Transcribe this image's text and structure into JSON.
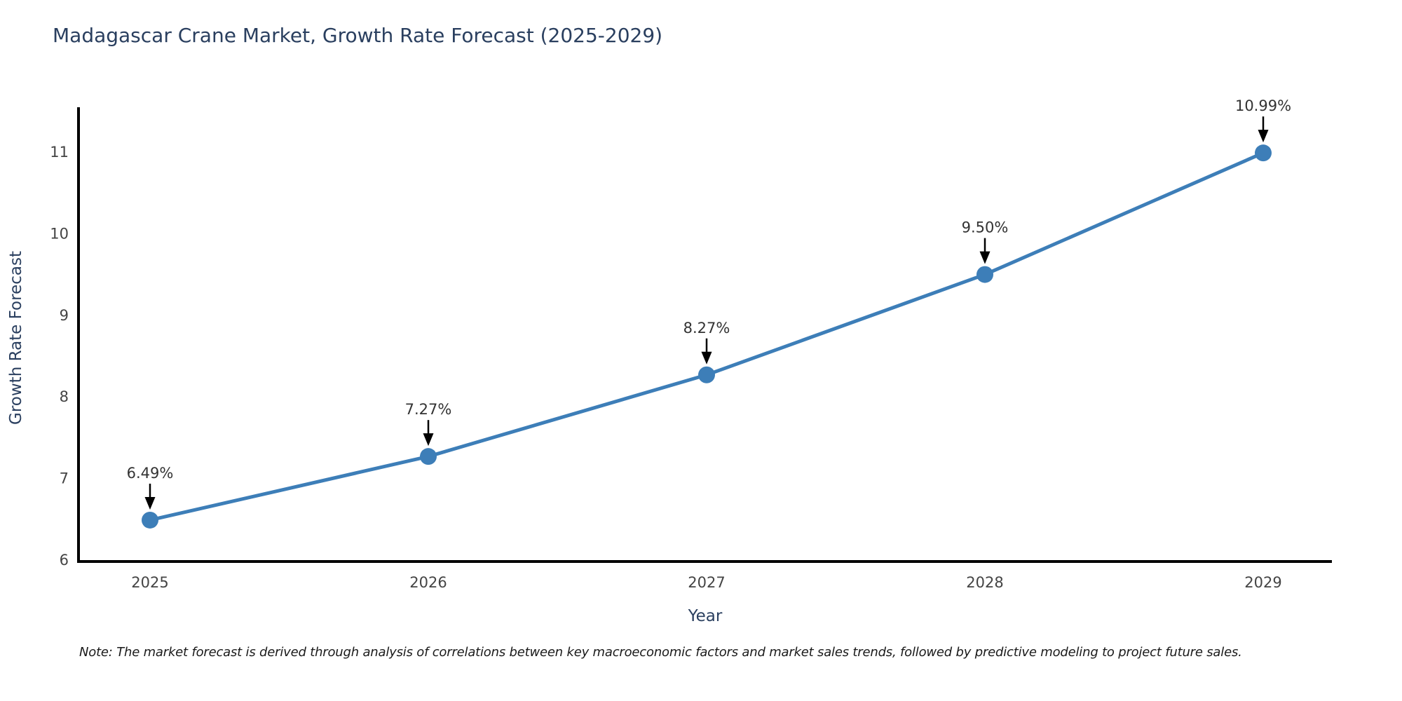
{
  "title": "Madagascar Crane Market, Growth Rate Forecast (2025-2029)",
  "note": "Note: The market forecast is derived through analysis of correlations between key macroeconomic factors and market sales trends, followed by predictive modeling to project future sales.",
  "chart_data": {
    "type": "line",
    "title": "Madagascar Crane Market, Growth Rate Forecast (2025-2029)",
    "x": [
      2025,
      2026,
      2027,
      2028,
      2029
    ],
    "series": [
      {
        "name": "Growth Rate Forecast",
        "values": [
          6.49,
          7.27,
          8.27,
          9.5,
          10.99
        ]
      }
    ],
    "point_labels": [
      "6.49%",
      "7.27%",
      "8.27%",
      "9.50%",
      "10.99%"
    ],
    "xlabel": "Year",
    "ylabel": "Growth Rate Forecast",
    "yticks": [
      6,
      7,
      8,
      9,
      10,
      11
    ],
    "ylim": [
      6,
      11.35
    ],
    "grid": false,
    "legend_position": "none",
    "colors": {
      "line": "#3d7eb8",
      "marker": "#3d7eb8",
      "axis": "#000000",
      "tick_label": "#444444",
      "axis_title": "#2a3f5f",
      "chart_title": "#2a3f5f",
      "annotation_text": "#333333",
      "annotation_arrow": "#000000"
    }
  }
}
